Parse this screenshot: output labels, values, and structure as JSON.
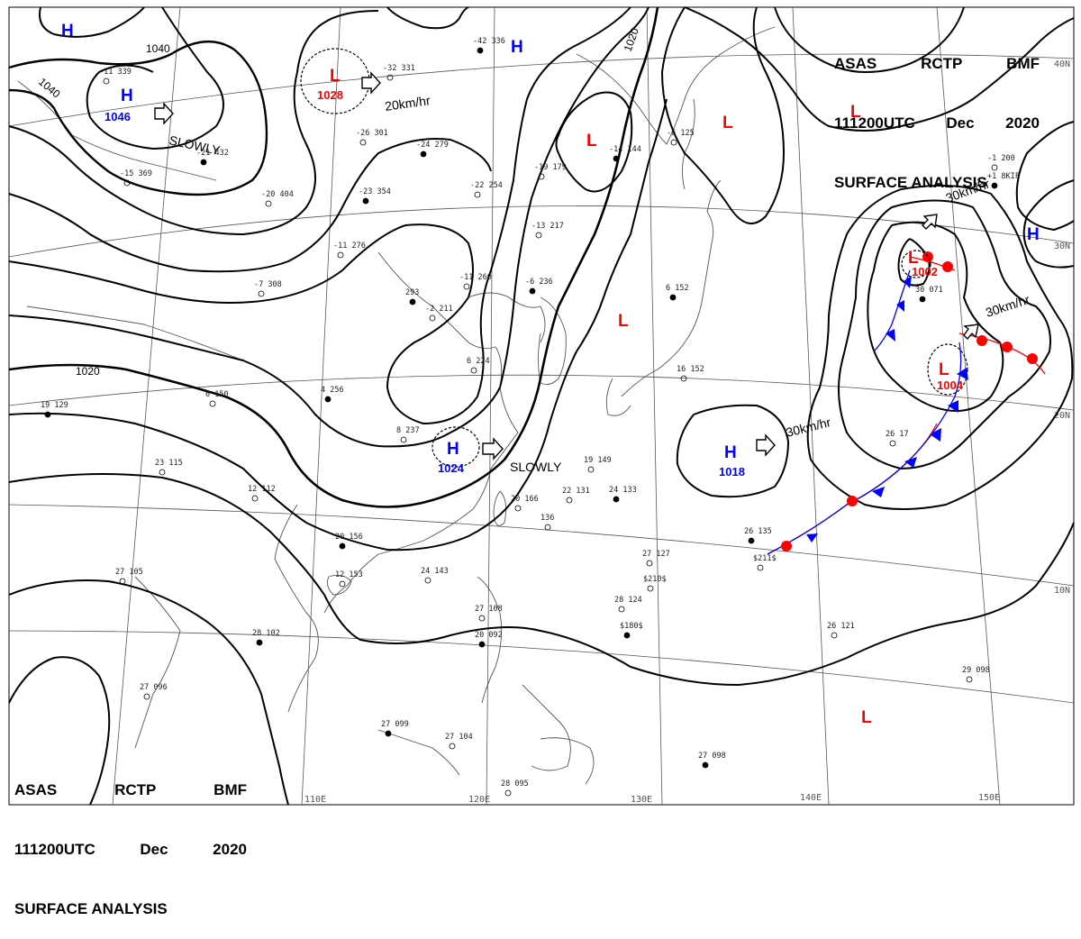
{
  "header": {
    "line1": [
      "ASAS",
      "RCTP",
      "BMF"
    ],
    "line2": [
      "111200UTC",
      "Dec",
      "2020"
    ],
    "line3": "SURFACE ANALYSIS"
  },
  "colors": {
    "high": "#0000ff",
    "low": "#ff0000",
    "isobar": "#000000",
    "coast": "#444444",
    "grid": "#666666",
    "warm_front": "#ff0000",
    "cold_front": "#0000ff"
  },
  "longitude_labels": [
    "110E",
    "120E",
    "130E",
    "140E",
    "150E"
  ],
  "latitude_labels": [
    "40N",
    "30N",
    "20N",
    "10N"
  ],
  "isobar_labels": [
    "1040",
    "1040",
    "1020",
    "1020"
  ],
  "pressure_systems": [
    {
      "type": "H",
      "center_label": ""
    },
    {
      "type": "H",
      "center_label": "1046"
    },
    {
      "type": "L",
      "center_label": "1028"
    },
    {
      "type": "H",
      "center_label": ""
    },
    {
      "type": "L",
      "center_label": ""
    },
    {
      "type": "L",
      "center_label": ""
    },
    {
      "type": "L",
      "center_label": ""
    },
    {
      "type": "H",
      "center_label": "1024"
    },
    {
      "type": "H",
      "center_label": "1018"
    },
    {
      "type": "L",
      "center_label": "1002"
    },
    {
      "type": "L",
      "center_label": "1004"
    },
    {
      "type": "L",
      "center_label": ""
    },
    {
      "type": "H",
      "center_label": ""
    },
    {
      "type": "L",
      "center_label": ""
    }
  ],
  "motion_labels": [
    "SLOWLY",
    "20km/hr",
    "SLOWLY",
    "30km/hr",
    "30km/hr",
    "30km/hr"
  ],
  "station_labels": [
    "-42 336",
    "-32 331",
    "-11 339",
    "-21 432",
    "-15 369",
    "-20 404",
    "-23 354",
    "-11 276",
    "-26 301",
    "-24 279",
    "-22 254",
    "-19 179",
    "-14 144",
    "-6 125",
    "-13 217",
    "-6 236",
    "-11 260",
    "-7 308",
    "293",
    "-2 211",
    "6 224",
    "4 256",
    "6 150",
    "8 237",
    "19 129",
    "23 115",
    "12 112",
    "20 156",
    "12 153",
    "27 105",
    "28 102",
    "24 143",
    "27 096",
    "27 099",
    "27 104",
    "27 108",
    "20 092",
    "28 095",
    "22 131",
    "24 133",
    "27 127",
    "28 124",
    "26 135",
    "26 121",
    "29 098",
    "27 098",
    "20 166",
    "136",
    "6 152",
    "16 152",
    "-1 200",
    "30 071",
    "26 17",
    "19 149",
    "$180$",
    "$210$",
    "$211$",
    "+1 8KIF"
  ]
}
